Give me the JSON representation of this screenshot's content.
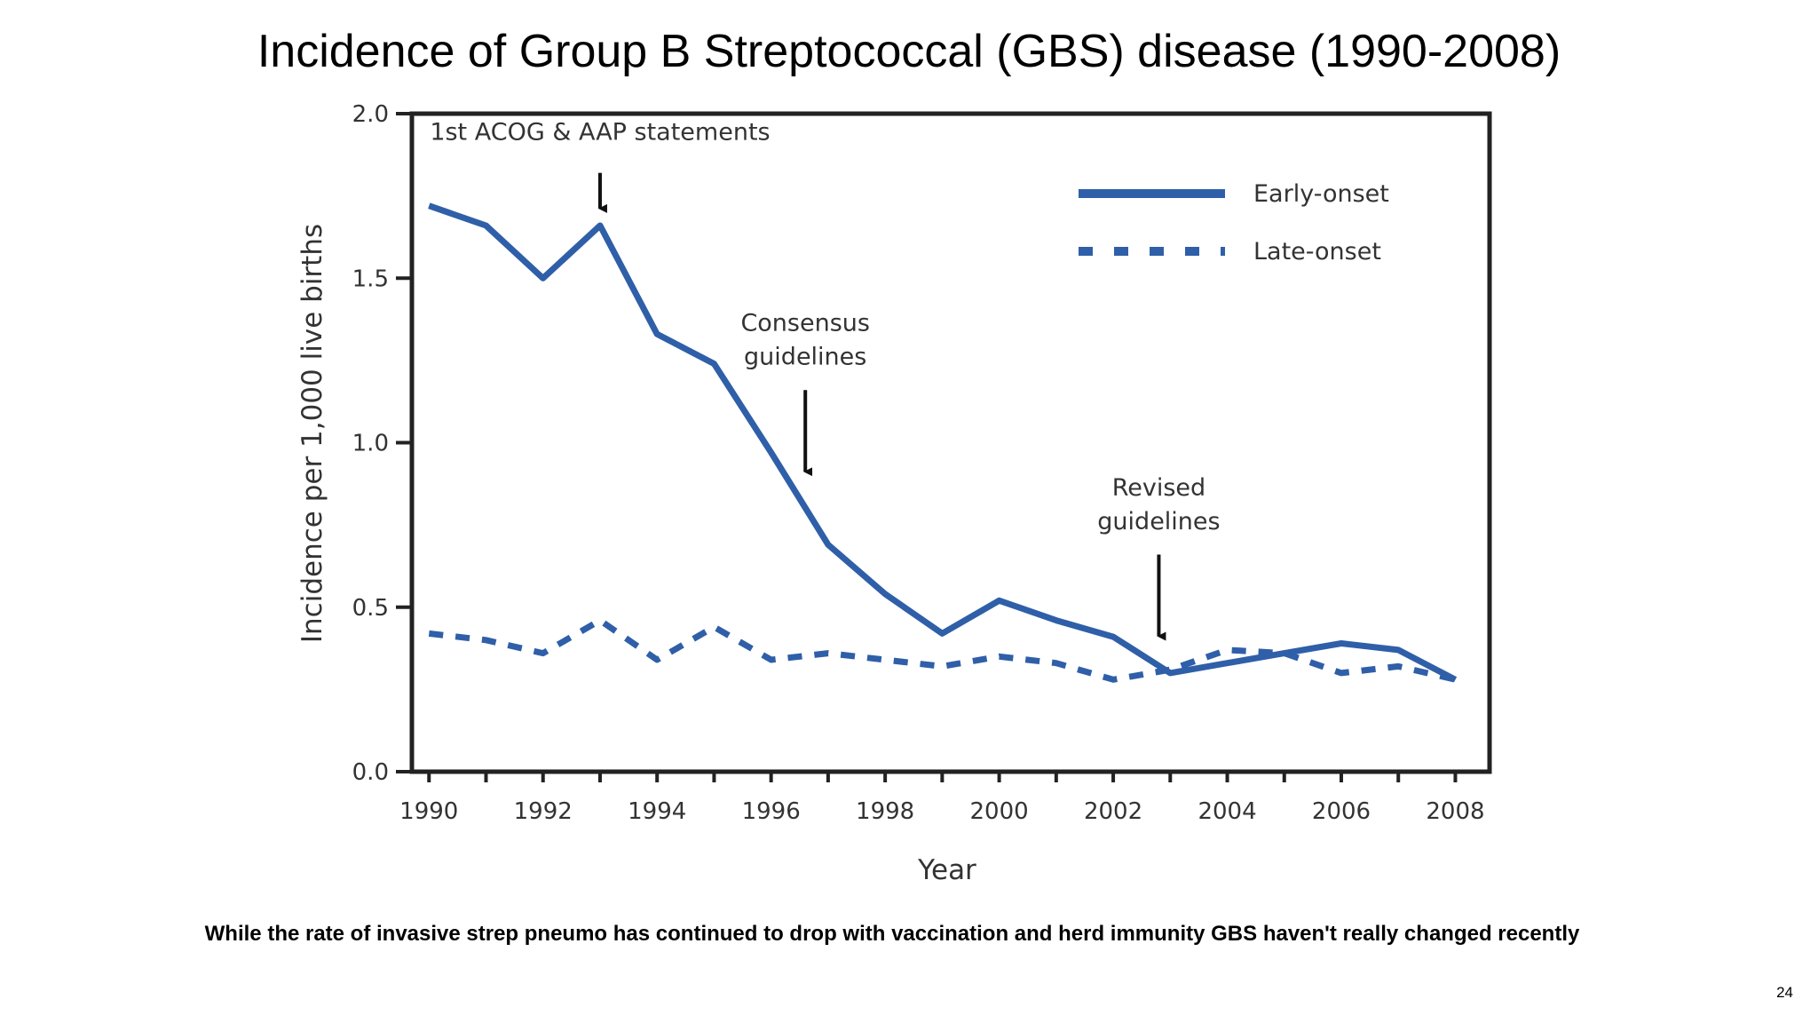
{
  "slide": {
    "title": "Incidence of Group B Streptococcal (GBS) disease (1990-2008)",
    "caption": "While the rate of invasive strep pneumo has continued to drop with vaccination and herd immunity GBS haven't really changed recently",
    "page_number": "24"
  },
  "colors": {
    "series": "#2f5fa8",
    "axis": "#222222",
    "arrow": "#111111"
  },
  "chart_data": {
    "type": "line",
    "title": "",
    "xlabel": "Year",
    "ylabel": "Incidence per 1,000 live births",
    "x": [
      1990,
      1991,
      1992,
      1993,
      1994,
      1995,
      1996,
      1997,
      1998,
      1999,
      2000,
      2001,
      2002,
      2003,
      2004,
      2005,
      2006,
      2007,
      2008
    ],
    "xlim": [
      1989.7,
      2008.6
    ],
    "ylim": [
      0,
      2.0
    ],
    "x_ticks": [
      1990,
      1991,
      1992,
      1993,
      1994,
      1995,
      1996,
      1997,
      1998,
      1999,
      2000,
      2001,
      2002,
      2003,
      2004,
      2005,
      2006,
      2007,
      2008
    ],
    "x_tick_labels": [
      "1990",
      "1992",
      "1994",
      "1996",
      "1998",
      "2000",
      "2002",
      "2004",
      "2006",
      "2008"
    ],
    "y_tick_labels": [
      "0.0",
      "0.5",
      "1.0",
      "1.5",
      "2.0"
    ],
    "legend_position": "top-right",
    "grid": false,
    "series": [
      {
        "name": "Early-onset",
        "style": "solid",
        "values": [
          1.72,
          1.66,
          1.5,
          1.66,
          1.33,
          1.24,
          0.97,
          0.69,
          0.54,
          0.42,
          0.52,
          0.46,
          0.41,
          0.3,
          0.33,
          0.36,
          0.39,
          0.37,
          0.28
        ]
      },
      {
        "name": "Late-onset",
        "style": "dashed",
        "values": [
          0.42,
          0.4,
          0.36,
          0.46,
          0.34,
          0.44,
          0.34,
          0.36,
          0.34,
          0.32,
          0.35,
          0.33,
          0.28,
          0.31,
          0.37,
          0.36,
          0.3,
          0.32,
          0.28
        ]
      }
    ],
    "annotations": [
      {
        "lines": [
          "1st ACOG & AAP statements"
        ],
        "x": 1993.0,
        "y_text": 1.92,
        "arrow_from": 1.82,
        "arrow_to": 1.69
      },
      {
        "lines": [
          "Consensus",
          "guidelines"
        ],
        "x": 1996.6,
        "y_text": 1.34,
        "arrow_from": 1.16,
        "arrow_to": 0.89
      },
      {
        "lines": [
          "Revised",
          "guidelines"
        ],
        "x": 2002.8,
        "y_text": 0.84,
        "arrow_from": 0.66,
        "arrow_to": 0.39
      }
    ]
  }
}
